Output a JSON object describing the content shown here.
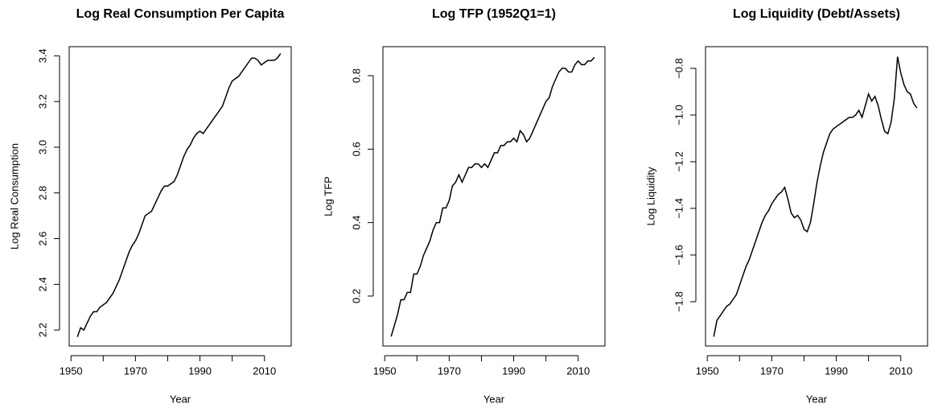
{
  "chart_data": [
    {
      "type": "line",
      "title": "Log Real Consumption Per Capita",
      "x_label": "Year",
      "y_label": "Log Real Consumption",
      "color": "#000000",
      "x": [
        1952,
        1953,
        1954,
        1955,
        1956,
        1957,
        1958,
        1959,
        1960,
        1961,
        1962,
        1963,
        1964,
        1965,
        1966,
        1967,
        1968,
        1969,
        1970,
        1971,
        1972,
        1973,
        1974,
        1975,
        1976,
        1977,
        1978,
        1979,
        1980,
        1981,
        1982,
        1983,
        1984,
        1985,
        1986,
        1987,
        1988,
        1989,
        1990,
        1991,
        1992,
        1993,
        1994,
        1995,
        1996,
        1997,
        1998,
        1999,
        2000,
        2001,
        2002,
        2003,
        2004,
        2005,
        2006,
        2007,
        2008,
        2009,
        2010,
        2011,
        2012,
        2013,
        2014,
        2015
      ],
      "values": [
        2.17,
        2.21,
        2.2,
        2.23,
        2.26,
        2.28,
        2.28,
        2.3,
        2.31,
        2.32,
        2.34,
        2.36,
        2.39,
        2.42,
        2.46,
        2.5,
        2.54,
        2.57,
        2.59,
        2.62,
        2.66,
        2.7,
        2.71,
        2.72,
        2.75,
        2.78,
        2.81,
        2.83,
        2.83,
        2.84,
        2.85,
        2.88,
        2.92,
        2.96,
        2.99,
        3.01,
        3.04,
        3.06,
        3.07,
        3.06,
        3.08,
        3.1,
        3.12,
        3.14,
        3.16,
        3.18,
        3.22,
        3.26,
        3.29,
        3.3,
        3.31,
        3.33,
        3.35,
        3.37,
        3.39,
        3.39,
        3.38,
        3.36,
        3.37,
        3.38,
        3.38,
        3.38,
        3.39,
        3.41
      ],
      "xlim": [
        1949.45,
        2018.3
      ],
      "xticks": [
        1950,
        {
          "value": 1960,
          "label": null
        },
        1970,
        {
          "value": 1980,
          "label": null
        },
        1990,
        {
          "value": 2000,
          "label": null
        },
        2010
      ],
      "ylim": [
        2.13,
        3.44
      ],
      "yticks": [
        2.2,
        2.4,
        2.6,
        2.8,
        {
          "value": 3,
          "label": "3.0"
        },
        3.2,
        3.4
      ]
    },
    {
      "type": "line",
      "title": "Log TFP (1952Q1=1)",
      "x_label": "Year",
      "y_label": "Log TFP",
      "color": "#000000",
      "x": [
        1952,
        1953,
        1954,
        1955,
        1956,
        1957,
        1958,
        1959,
        1960,
        1961,
        1962,
        1963,
        1964,
        1965,
        1966,
        1967,
        1968,
        1969,
        1970,
        1971,
        1972,
        1973,
        1974,
        1975,
        1976,
        1977,
        1978,
        1979,
        1980,
        1981,
        1982,
        1983,
        1984,
        1985,
        1986,
        1987,
        1988,
        1989,
        1990,
        1991,
        1992,
        1993,
        1994,
        1995,
        1996,
        1997,
        1998,
        1999,
        2000,
        2001,
        2002,
        2003,
        2004,
        2005,
        2006,
        2007,
        2008,
        2009,
        2010,
        2011,
        2012,
        2013,
        2014,
        2015
      ],
      "values": [
        0.09,
        0.12,
        0.15,
        0.19,
        0.19,
        0.21,
        0.21,
        0.26,
        0.26,
        0.28,
        0.31,
        0.33,
        0.35,
        0.38,
        0.4,
        0.4,
        0.44,
        0.44,
        0.46,
        0.5,
        0.51,
        0.53,
        0.51,
        0.53,
        0.55,
        0.55,
        0.56,
        0.56,
        0.55,
        0.56,
        0.55,
        0.57,
        0.59,
        0.59,
        0.61,
        0.61,
        0.62,
        0.62,
        0.63,
        0.62,
        0.65,
        0.64,
        0.62,
        0.63,
        0.65,
        0.67,
        0.69,
        0.71,
        0.73,
        0.74,
        0.77,
        0.79,
        0.81,
        0.82,
        0.82,
        0.81,
        0.81,
        0.83,
        0.84,
        0.83,
        0.83,
        0.84,
        0.84,
        0.85
      ],
      "xlim": [
        1949.45,
        2018.3
      ],
      "xticks": [
        1950,
        {
          "value": 1960,
          "label": null
        },
        1970,
        {
          "value": 1980,
          "label": null
        },
        1990,
        {
          "value": 2000,
          "label": null
        },
        2010
      ],
      "ylim": [
        0.064,
        0.879
      ],
      "yticks": [
        0.2,
        0.4,
        0.6,
        0.8
      ]
    },
    {
      "type": "line",
      "title": "Log Liquidity (Debt/Assets)",
      "x_label": "Year",
      "y_label": "Log Liquidity",
      "color": "#000000",
      "x": [
        1952,
        1953,
        1954,
        1955,
        1956,
        1957,
        1958,
        1959,
        1960,
        1961,
        1962,
        1963,
        1964,
        1965,
        1966,
        1967,
        1968,
        1969,
        1970,
        1971,
        1972,
        1973,
        1974,
        1975,
        1976,
        1977,
        1978,
        1979,
        1980,
        1981,
        1982,
        1983,
        1984,
        1985,
        1986,
        1987,
        1988,
        1989,
        1990,
        1991,
        1992,
        1993,
        1994,
        1995,
        1996,
        1997,
        1998,
        1999,
        2000,
        2001,
        2002,
        2003,
        2004,
        2005,
        2006,
        2007,
        2008,
        2009,
        2010,
        2011,
        2012,
        2013,
        2014,
        2015
      ],
      "values": [
        -1.95,
        -1.88,
        -1.86,
        -1.84,
        -1.82,
        -1.81,
        -1.79,
        -1.77,
        -1.73,
        -1.69,
        -1.65,
        -1.62,
        -1.58,
        -1.54,
        -1.5,
        -1.46,
        -1.43,
        -1.41,
        -1.38,
        -1.36,
        -1.34,
        -1.33,
        -1.31,
        -1.36,
        -1.42,
        -1.44,
        -1.43,
        -1.45,
        -1.49,
        -1.5,
        -1.46,
        -1.38,
        -1.29,
        -1.22,
        -1.16,
        -1.12,
        -1.08,
        -1.06,
        -1.05,
        -1.04,
        -1.03,
        -1.02,
        -1.01,
        -1.01,
        -1,
        -0.98,
        -1.01,
        -0.96,
        -0.91,
        -0.94,
        -0.92,
        -0.96,
        -1.02,
        -1.07,
        -1.08,
        -1.03,
        -0.93,
        -0.75,
        -0.82,
        -0.87,
        -0.9,
        -0.91,
        -0.95,
        -0.97
      ],
      "xlim": [
        1949.45,
        2018.3
      ],
      "xticks": [
        1950,
        {
          "value": 1960,
          "label": null
        },
        1970,
        {
          "value": 1980,
          "label": null
        },
        1990,
        {
          "value": 2000,
          "label": null
        },
        2010
      ],
      "ylim": [
        -1.99,
        -0.707
      ],
      "yticks": [
        {
          "value": -1.8,
          "label": "−1.8"
        },
        {
          "value": -1.6,
          "label": "−1.6"
        },
        {
          "value": -1.4,
          "label": "−1.4"
        },
        {
          "value": -1.2,
          "label": "−1.2"
        },
        {
          "value": -1,
          "label": "−1.0"
        },
        {
          "value": -0.8,
          "label": "−0.8"
        }
      ]
    }
  ]
}
